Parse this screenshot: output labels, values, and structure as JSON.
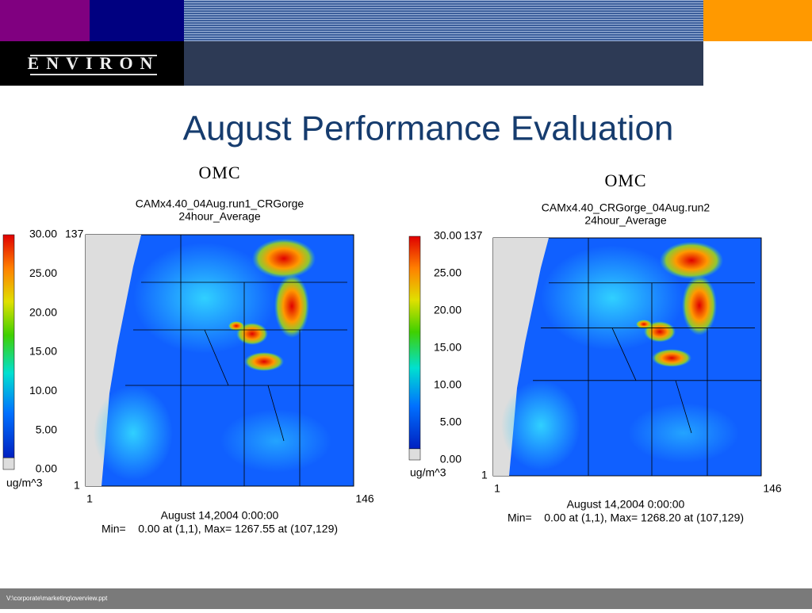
{
  "header": {
    "logo": "ENVIRON"
  },
  "title": "August Performance Evaluation",
  "panels": [
    {
      "label": "OMC",
      "run": "CAMx4.40_04Aug.run1_CRGorge",
      "average": "24hour_Average",
      "scale": [
        "30.00",
        "25.00",
        "20.00",
        "15.00",
        "10.00",
        "5.00",
        "0.00"
      ],
      "unit": "ug/m^3",
      "y_max": "137",
      "y_min": "1",
      "x_min": "1",
      "x_max": "146",
      "date": "August 14,2004 0:00:00",
      "stats": "Min=    0.00 at (1,1), Max= 1267.55 at (107,129)"
    },
    {
      "label": "OMC",
      "run": "CAMx4.40_CRGorge_04Aug.run2",
      "average": "24hour_Average",
      "scale": [
        "30.00",
        "25.00",
        "20.00",
        "15.00",
        "10.00",
        "5.00",
        "0.00"
      ],
      "unit": "ug/m^3",
      "y_max": "137",
      "y_min": "1",
      "x_min": "1",
      "x_max": "146",
      "date": "August 14,2004 0:00:00",
      "stats": "Min=    0.00 at (1,1), Max= 1268.20 at (107,129)"
    }
  ],
  "footer": {
    "path": "V:\\corporate\\marketing\\overview.ppt"
  }
}
